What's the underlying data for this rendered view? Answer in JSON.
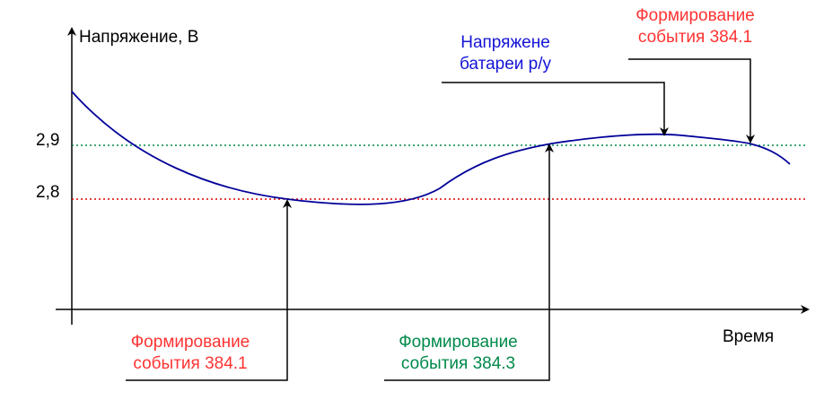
{
  "y_axis": {
    "title": "Напряжение, В",
    "ticks": [
      "2,9",
      "2,8"
    ]
  },
  "x_axis": {
    "title": "Время"
  },
  "annotations": {
    "bottom_left": {
      "line1": "Формирование",
      "line2": "события 384.1",
      "color": "#ff3333"
    },
    "bottom_mid": {
      "line1": "Формирование",
      "line2": "события 384.3",
      "color": "#00894a"
    },
    "top_mid": {
      "line1": "Напряжене",
      "line2": "батареи р/у",
      "color": "#1414d6"
    },
    "top_right": {
      "line1": "Формирование",
      "line2": "события 384.1",
      "color": "#ff3333"
    }
  },
  "colors": {
    "curve": "#000099",
    "threshold_2_9": "#00894a",
    "threshold_2_8": "#e00000",
    "axis": "#000000"
  }
}
